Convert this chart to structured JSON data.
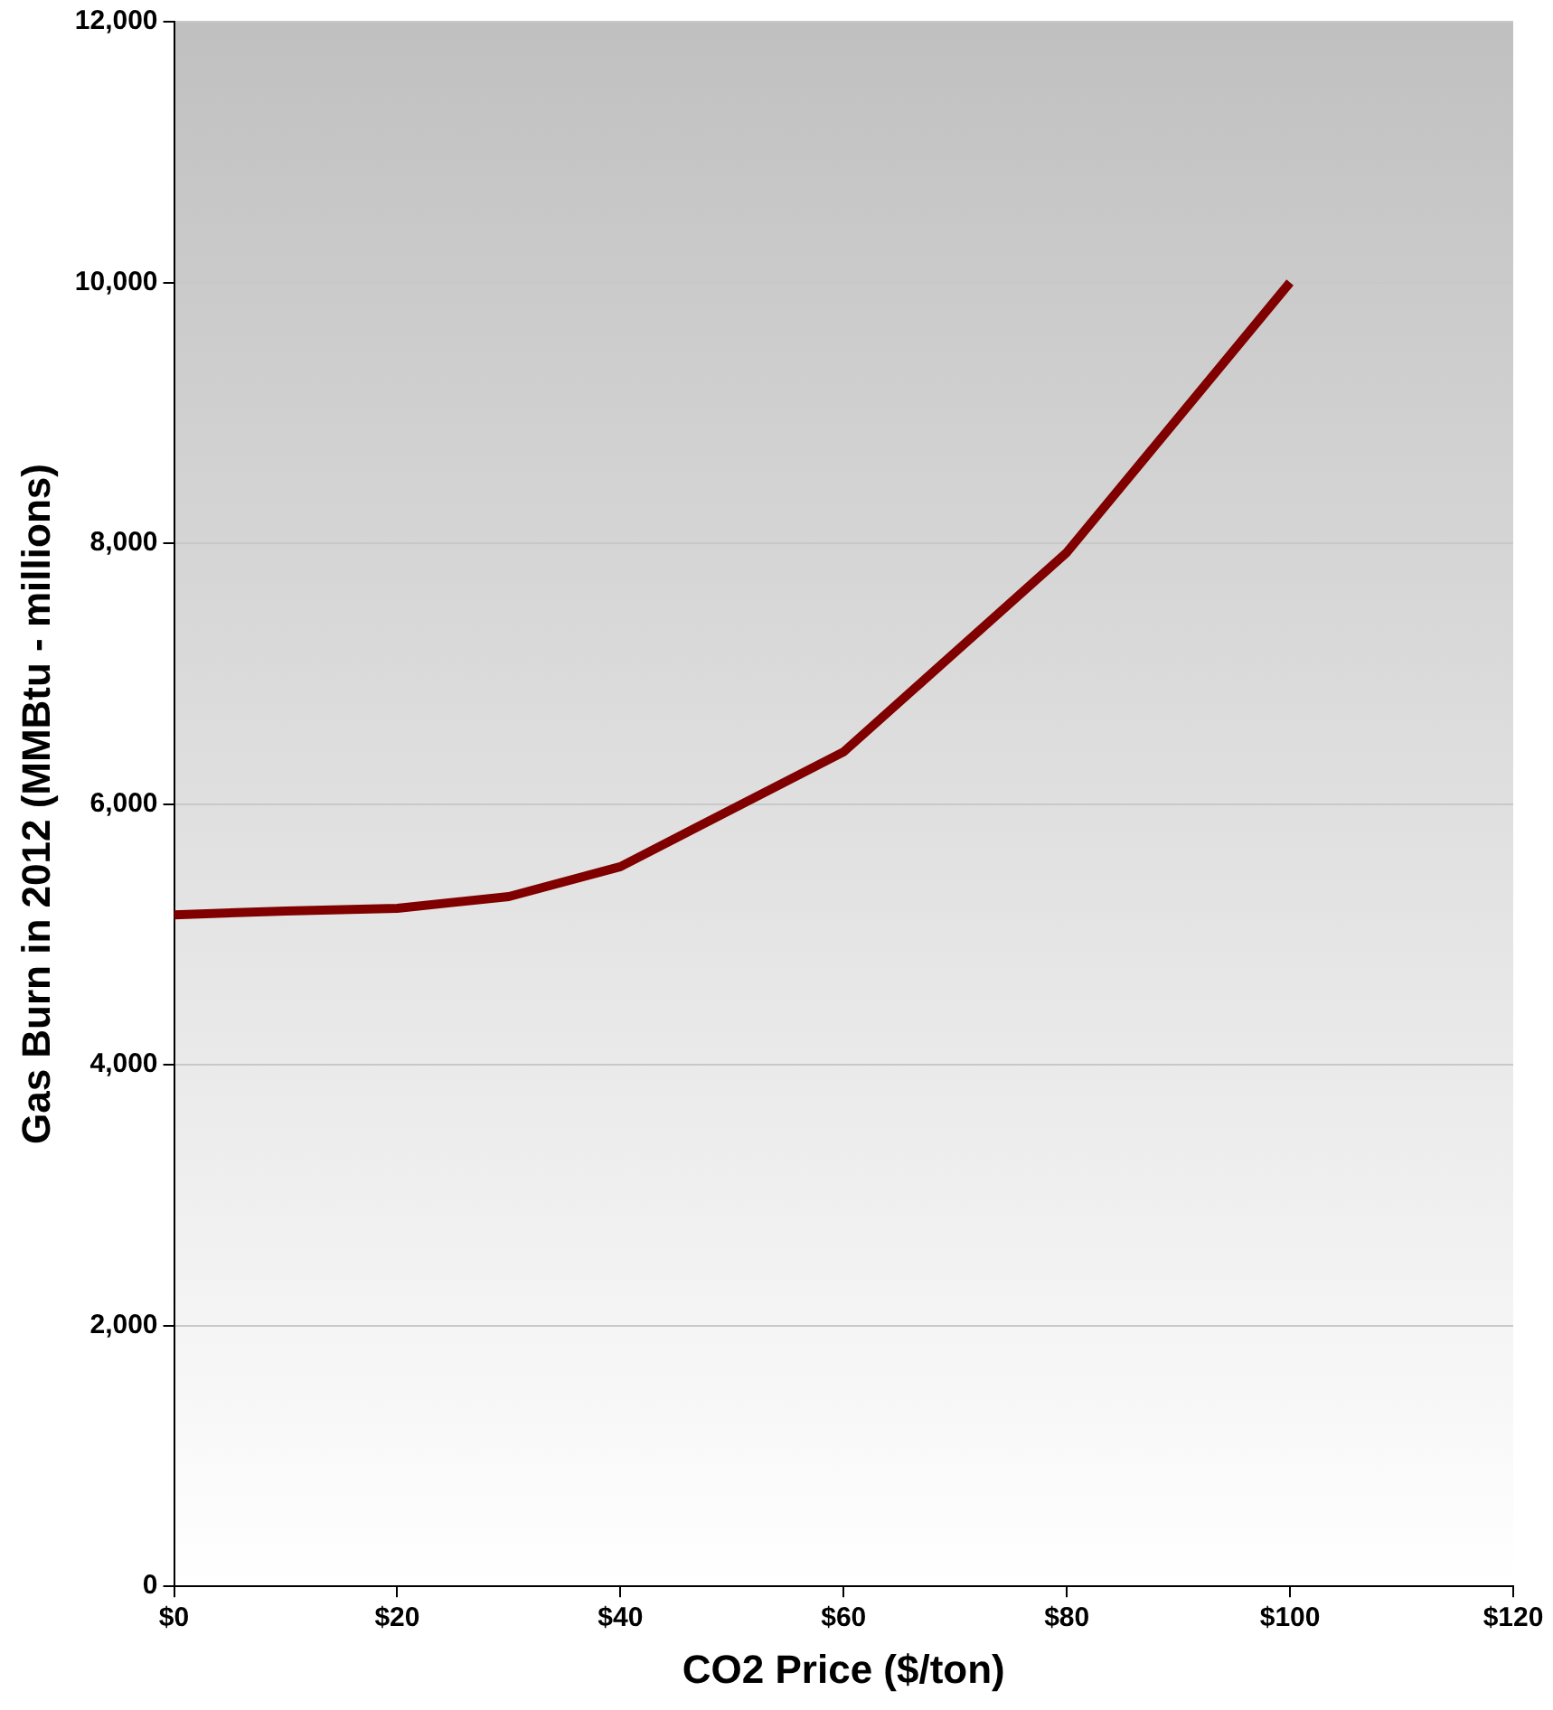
{
  "chart_data": {
    "type": "line",
    "xlabel": "CO2 Price ($/ton)",
    "ylabel": "Gas Burn in 2012 (MMBtu - millions)",
    "x": [
      0,
      10,
      20,
      30,
      40,
      60,
      80,
      100
    ],
    "series": [
      {
        "color": "#800000",
        "values": [
          5150,
          5180,
          5200,
          5290,
          5520,
          6400,
          7930,
          10000
        ]
      }
    ],
    "xlim": [
      0,
      120
    ],
    "xticks": [
      {
        "value": 0,
        "label": "$0"
      },
      {
        "value": 20,
        "label": "$20"
      },
      {
        "value": 40,
        "label": "$40"
      },
      {
        "value": 60,
        "label": "$60"
      },
      {
        "value": 80,
        "label": "$80"
      },
      {
        "value": 100,
        "label": "$100"
      },
      {
        "value": 120,
        "label": "$120"
      }
    ],
    "ylim": [
      0,
      12000
    ],
    "yticks": [
      {
        "value": 0,
        "label": "0"
      },
      {
        "value": 2000,
        "label": "2,000"
      },
      {
        "value": 4000,
        "label": "4,000"
      },
      {
        "value": 6000,
        "label": "6,000"
      },
      {
        "value": 8000,
        "label": "8,000"
      },
      {
        "value": 10000,
        "label": "10,000"
      },
      {
        "value": 12000,
        "label": "12,000"
      }
    ],
    "grid": "y",
    "legend": false,
    "marker": "none",
    "line_style": "solid"
  }
}
